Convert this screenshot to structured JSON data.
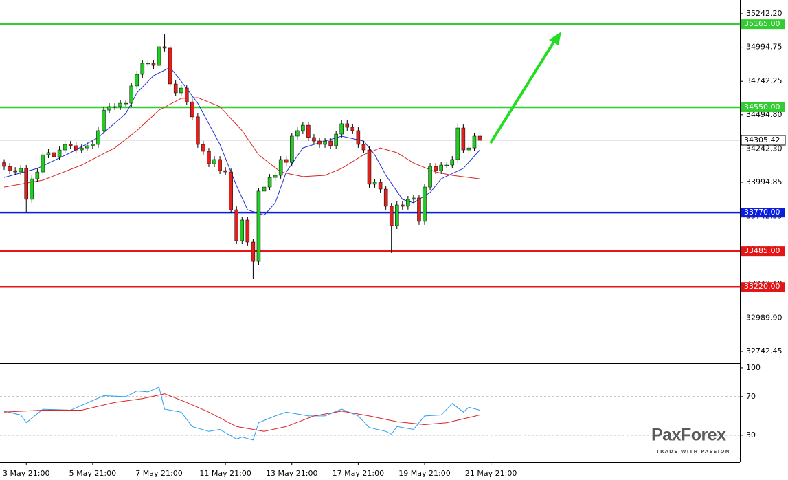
{
  "chart_data": {
    "type": "candlestick",
    "xlim": [
      -0.75,
      133
    ],
    "xticks": [
      {
        "value": 4,
        "label": "3 May 21:00"
      },
      {
        "value": 16,
        "label": "5 May 21:00"
      },
      {
        "value": 28,
        "label": "7 May 21:00"
      },
      {
        "value": 40,
        "label": "11 May 21:00"
      },
      {
        "value": 52,
        "label": "13 May 21:00"
      },
      {
        "value": 64,
        "label": "17 May 21:00"
      },
      {
        "value": 76,
        "label": "19 May 21:00"
      },
      {
        "value": 88,
        "label": "21 May 21:00"
      }
    ],
    "ylim": [
      32656,
      35344
    ],
    "yticks": [
      {
        "value": 35242.2,
        "label": "35242.20"
      },
      {
        "value": 34994.75,
        "label": "34994.75"
      },
      {
        "value": 34742.25,
        "label": "34742.25"
      },
      {
        "value": 34494.8,
        "label": "34494.80"
      },
      {
        "value": 34242.3,
        "label": "34242.30"
      },
      {
        "value": 33994.85,
        "label": "33994.85"
      },
      {
        "value": 33742.35,
        "label": "33742.35"
      },
      {
        "value": 33494.9,
        "label": "33494.90"
      },
      {
        "value": 33242.4,
        "label": "33242.40"
      },
      {
        "value": 32989.9,
        "label": "32989.90"
      },
      {
        "value": 32742.45,
        "label": "32742.45"
      }
    ],
    "up_color": "#22cc22",
    "down_color": "#e3201c",
    "open": [
      34140,
      34112,
      34081,
      34071,
      34097,
      33868,
      34020,
      34071,
      34198,
      34214,
      34183,
      34234,
      34275,
      34265,
      34234,
      34249,
      34265,
      34275,
      34377,
      34529,
      34555,
      34555,
      34580,
      34580,
      34708,
      34794,
      34876,
      34876,
      34860,
      34998,
      34988,
      34723,
      34657,
      34692,
      34590,
      34479,
      34275,
      34224,
      34132,
      34163,
      34081,
      34071,
      33791,
      33562,
      33715,
      33552,
      33409,
      33929,
      33959,
      34030,
      34046,
      34163,
      34142,
      34336,
      34377,
      34417,
      34326,
      34300,
      34275,
      34300,
      34265,
      34351,
      34428,
      34402,
      34377,
      34275,
      34234,
      33980,
      33995,
      33944,
      33817,
      33674,
      33827,
      33817,
      33868,
      33878,
      33705,
      33959,
      34112,
      34081,
      34122,
      34122,
      34163,
      34397,
      34234,
      34249,
      34336
    ],
    "high": [
      34165,
      34137,
      34106,
      34122,
      34122,
      34045,
      34096,
      34223,
      34239,
      34239,
      34259,
      34300,
      34300,
      34290,
      34274,
      34290,
      34300,
      34402,
      34554,
      34580,
      34580,
      34605,
      34605,
      34733,
      34819,
      34901,
      34901,
      34901,
      35023,
      35089,
      35013,
      34748,
      34717,
      34717,
      34615,
      34504,
      34300,
      34249,
      34188,
      34188,
      34106,
      34096,
      33816,
      33740,
      33740,
      33577,
      33954,
      33984,
      34055,
      34071,
      34188,
      34188,
      34361,
      34402,
      34442,
      34442,
      34351,
      34325,
      34325,
      34325,
      34376,
      34453,
      34453,
      34427,
      34402,
      34300,
      34259,
      34020,
      34020,
      33969,
      33842,
      33852,
      33852,
      33893,
      33903,
      33903,
      33984,
      34137,
      34137,
      34147,
      34147,
      34188,
      34430,
      34422,
      34274,
      34361,
      34361
    ],
    "low": [
      34087,
      34056,
      34046,
      34046,
      33776,
      33843,
      33995,
      34046,
      34173,
      34158,
      34158,
      34209,
      34240,
      34209,
      34209,
      34224,
      34240,
      34250,
      34352,
      34504,
      34530,
      34530,
      34555,
      34555,
      34683,
      34769,
      34851,
      34835,
      34835,
      34963,
      34698,
      34632,
      34632,
      34565,
      34454,
      34250,
      34199,
      34107,
      34107,
      34056,
      34046,
      33766,
      33537,
      33537,
      33527,
      33282,
      33384,
      33904,
      33934,
      34005,
      34021,
      34117,
      34117,
      34311,
      34352,
      34301,
      34275,
      34250,
      34250,
      34240,
      34240,
      34326,
      34377,
      34352,
      34250,
      34209,
      33955,
      33955,
      33919,
      33792,
      33471,
      33649,
      33792,
      33792,
      33843,
      33680,
      33680,
      33934,
      34056,
      34056,
      34097,
      34097,
      34138,
      34209,
      34209,
      34224,
      34280
    ],
    "close": [
      34112,
      34081,
      34071,
      34097,
      33868,
      34020,
      34071,
      34198,
      34214,
      34183,
      34234,
      34275,
      34265,
      34234,
      34249,
      34265,
      34275,
      34377,
      34529,
      34555,
      34555,
      34580,
      34580,
      34708,
      34794,
      34876,
      34876,
      34860,
      34998,
      34988,
      34723,
      34657,
      34692,
      34590,
      34479,
      34275,
      34224,
      34132,
      34163,
      34081,
      34071,
      33791,
      33562,
      33715,
      33552,
      33409,
      33929,
      33959,
      34030,
      34046,
      34163,
      34142,
      34336,
      34377,
      34417,
      34326,
      34300,
      34275,
      34300,
      34265,
      34351,
      34428,
      34402,
      34377,
      34275,
      34234,
      33980,
      33995,
      33944,
      33817,
      33674,
      33827,
      33817,
      33868,
      33878,
      33705,
      33959,
      34112,
      34081,
      34122,
      34122,
      34163,
      34397,
      34234,
      34249,
      34336,
      34305
    ],
    "series": [
      {
        "color": "#1c2fd6",
        "x": [
          0,
          6,
          12,
          17,
          22,
          24,
          27,
          30,
          32,
          35,
          39,
          42,
          44,
          47,
          49,
          51,
          54,
          58,
          61,
          65,
          67,
          69,
          72,
          74,
          77,
          79,
          83,
          86
        ],
        "values": [
          34030,
          34097,
          34214,
          34326,
          34504,
          34657,
          34784,
          34845,
          34743,
          34580,
          34275,
          33969,
          33791,
          33751,
          33842,
          34071,
          34249,
          34300,
          34336,
          34300,
          34198,
          34046,
          33868,
          33842,
          33919,
          34020,
          34097,
          34234
        ]
      },
      {
        "color": "#dd2222",
        "x": [
          0,
          7,
          14,
          20,
          24,
          28,
          32,
          35,
          39,
          43,
          46,
          50,
          54,
          58,
          61,
          65,
          68,
          71,
          74,
          78,
          81,
          86
        ],
        "values": [
          33959,
          34010,
          34122,
          34249,
          34377,
          34529,
          34616,
          34621,
          34555,
          34377,
          34198,
          34071,
          34036,
          34046,
          34097,
          34198,
          34249,
          34214,
          34137,
          34071,
          34046,
          34020
        ]
      }
    ],
    "levels": [
      {
        "value": 35165,
        "label": "35165.00",
        "color": "#33cc33"
      },
      {
        "value": 34550,
        "label": "34550.00",
        "color": "#33cc33"
      },
      {
        "value": 33770,
        "label": "33770.00",
        "color": "#0a1ee0"
      },
      {
        "value": 33485,
        "label": "33485.00",
        "color": "#e31515"
      },
      {
        "value": 33220,
        "label": "33220.00",
        "color": "#e31515"
      }
    ],
    "current_price": {
      "value": 34305.42,
      "label": "34305.42"
    },
    "oscillator": {
      "ylim": [
        2,
        101.4
      ],
      "yticks": [
        100,
        70,
        30
      ],
      "levels": [
        70,
        30
      ],
      "series": [
        {
          "color": "#2a9df4",
          "x": [
            0,
            3,
            4,
            7,
            12,
            18,
            22,
            24,
            26,
            28,
            29,
            32,
            34,
            37,
            39,
            42,
            43,
            45,
            46,
            49,
            51,
            55,
            58,
            61,
            64,
            66,
            69,
            70,
            71,
            74,
            76,
            79,
            81,
            83,
            84,
            86
          ],
          "values": [
            55,
            51,
            43,
            57,
            56,
            71,
            70,
            76,
            75,
            80,
            57,
            54,
            39,
            34,
            36,
            26,
            28,
            25,
            43,
            50,
            54,
            50,
            50,
            57,
            50,
            38,
            34,
            31,
            39,
            36,
            50,
            51,
            63,
            54,
            59,
            56
          ]
        },
        {
          "color": "#dd2222",
          "x": [
            0,
            7,
            14,
            20,
            25,
            29,
            33,
            37,
            42,
            47,
            51,
            56,
            61,
            66,
            71,
            76,
            80,
            86
          ],
          "values": [
            54,
            56,
            56,
            64,
            68,
            73,
            64,
            54,
            39,
            34,
            39,
            50,
            55,
            50,
            44,
            41,
            43,
            51
          ]
        }
      ]
    },
    "watermark": {
      "name": "PaxForex",
      "tagline": "TRADE WITH PASSION"
    }
  }
}
